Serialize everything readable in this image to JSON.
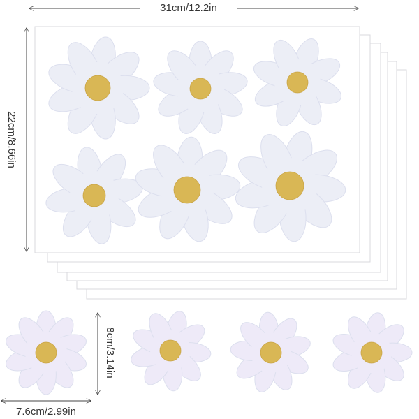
{
  "dimensions": {
    "sheet_width": "31cm/12.2in",
    "sheet_height": "22cm/8.66in",
    "sticker_height": "8cm/3.14in",
    "sticker_width": "7.6cm/2.99in"
  }
}
